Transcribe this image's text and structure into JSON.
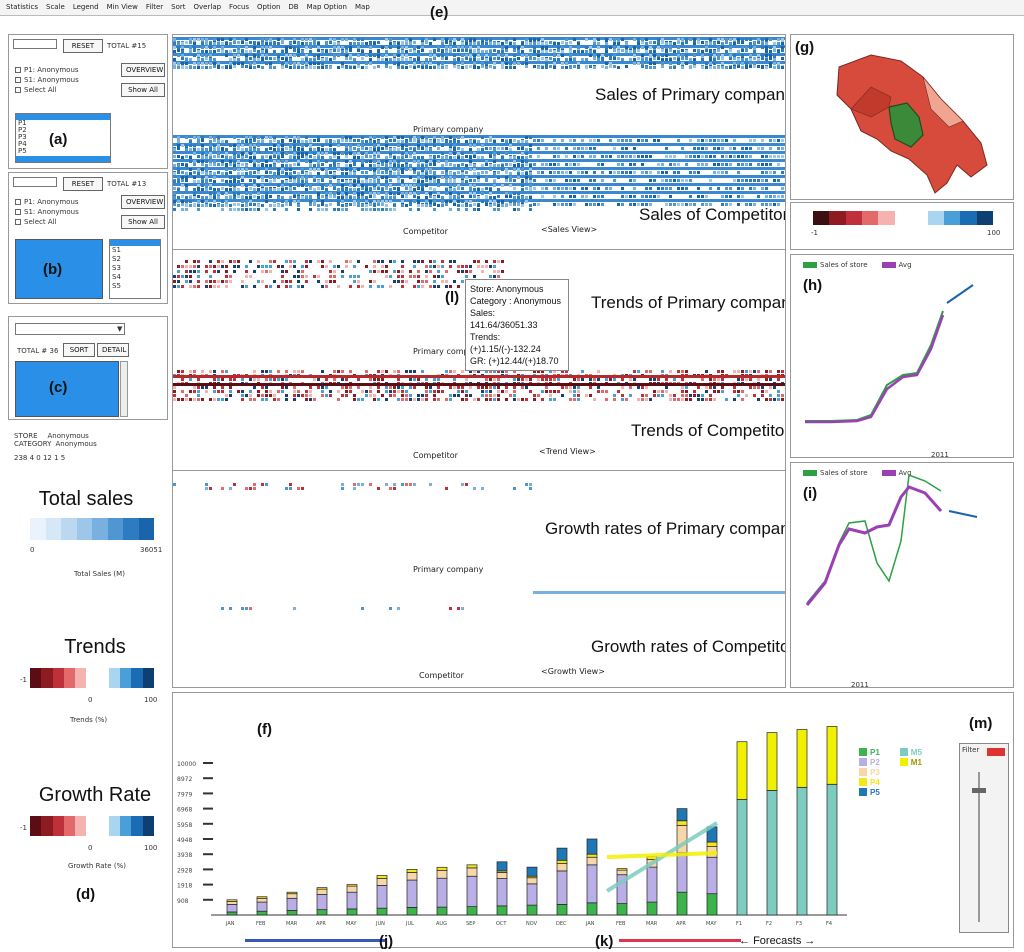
{
  "menu": [
    "Statistics",
    "Scale",
    "Legend",
    "Min View",
    "Filter",
    "Sort",
    "Overlap",
    "Focus",
    "Option",
    "DB",
    "Map Option",
    "Map"
  ],
  "labels": {
    "a": "(a)",
    "b": "(b)",
    "c": "(c)",
    "d": "(d)",
    "e": "(e)",
    "f": "(f)",
    "g": "(g)",
    "h": "(h)",
    "i": "(i)",
    "j": "(j)",
    "k": "(k)",
    "l": "(l)",
    "m": "(m)"
  },
  "panel_a": {
    "reset": "RESET",
    "total": "TOTAL #15",
    "overview": "OVERVIEW",
    "show_all": "Show All",
    "checks": [
      "P1: Anonymous",
      "S1: Anonymous",
      "Select All"
    ],
    "items": [
      "P1",
      "P2",
      "P3",
      "P4",
      "P5"
    ]
  },
  "panel_b": {
    "reset": "RESET",
    "total": "TOTAL #13",
    "overview": "OVERVIEW",
    "show_all": "Show All",
    "checks": [
      "P1: Anonymous",
      "S1: Anonymous",
      "Select All"
    ],
    "items": [
      "S1",
      "S2",
      "S3",
      "S4",
      "S5"
    ]
  },
  "panel_c": {
    "total": "TOTAL # 36",
    "sort": "SORT",
    "detail": "DETAIL"
  },
  "store_info": {
    "store_label": "STORE",
    "store_value": "Anonymous",
    "category_label": "CATEGORY",
    "category_value": "Anonymous",
    "stats": "238  4    0  12     1   5"
  },
  "legends": {
    "total_sales": {
      "title": "Total sales",
      "min": "0",
      "max": "36051",
      "caption": "Total Sales (M)",
      "colors": [
        "#eaf3fb",
        "#d6e8f7",
        "#bcd8f1",
        "#9cc6ea",
        "#78b1e0",
        "#4f96d3",
        "#2d7cc2",
        "#1a64ab"
      ]
    },
    "trends": {
      "title": "Trends",
      "left": "-1",
      "mid": "0",
      "right": "100",
      "caption": "Trends (%)",
      "colors": [
        "#5a0d12",
        "#8e1a22",
        "#c0303a",
        "#e36a6a",
        "#f4b3ae",
        "#ffffff",
        "#ffffff",
        "#a9d4f2",
        "#4b9fd8",
        "#1a6db3",
        "#0d3f73"
      ]
    },
    "growth": {
      "title": "Growth Rate",
      "left": "-1",
      "mid": "0",
      "right": "100",
      "caption": "Growth Rate (%)",
      "colors": [
        "#5a0d12",
        "#8e1a22",
        "#c0303a",
        "#e36a6a",
        "#f4b3ae",
        "#ffffff",
        "#ffffff",
        "#a9d4f2",
        "#4b9fd8",
        "#1a6db3",
        "#0d3f73"
      ]
    }
  },
  "views": {
    "sales_primary": "Sales of Primary company",
    "sales_competitor": "Sales of Competitor",
    "trends_primary": "Trends of Primary company",
    "trends_competitor": "Trends of Competitor",
    "growth_primary": "Growth rates of Primary company",
    "growth_competitor": "Growth rates of Competitor",
    "sales_view": "<Sales View>",
    "trend_view": "<Trend View>",
    "growth_view": "<Growth View>",
    "primary_small": "Primary company",
    "competitor_small": "Competitor"
  },
  "tooltip": [
    "Store: Anonymous",
    "Category : Anonymous",
    "Sales: 141.64/36051.33",
    "Trends: (+)1.15/(-)-132.24",
    "GR: (+)12.44/(+)18.70"
  ],
  "map_scale": {
    "left": "-1",
    "right": "100",
    "colors": [
      "#3a1010",
      "#8e1a22",
      "#c0303a",
      "#e36a6a",
      "#f4b3ae",
      "#ffffff",
      "#ffffff",
      "#a9d4f2",
      "#4b9fd8",
      "#1a6db3",
      "#0d3f73"
    ]
  },
  "line_legend": {
    "a": "Sales of store",
    "b": "Avg"
  },
  "line_year": "2011",
  "forecasts": "Forecasts",
  "filter_title": "Filter",
  "bar_legend": [
    {
      "name": "P1",
      "color": "#3cb44b"
    },
    {
      "name": "P2",
      "color": "#b9aee6"
    },
    {
      "name": "P3",
      "color": "#f6d7a7"
    },
    {
      "name": "P4",
      "color": "#f5e51b"
    },
    {
      "name": "P5",
      "color": "#1f78b4"
    },
    {
      "name": "M5",
      "color": "#7ecbc0"
    },
    {
      "name": "M1",
      "color": "#f0f000"
    }
  ],
  "chart_data": {
    "type": "bar",
    "title": "",
    "ylabel": "",
    "xlabel": "",
    "ylim": [
      0,
      10000
    ],
    "yticks": [
      "10000",
      "8972",
      "7979",
      "6968",
      "5958",
      "4948",
      "3938",
      "2928",
      "1918",
      "908"
    ],
    "categories": [
      "JAN",
      "FEB",
      "MAR",
      "APR",
      "MAY",
      "JUN",
      "JUL",
      "AUG",
      "SEP",
      "OCT",
      "NOV",
      "DEC",
      "JAN",
      "FEB",
      "MAR",
      "APR",
      "MAY",
      "F1",
      "F2",
      "F3",
      "F4"
    ],
    "series": [
      {
        "name": "P1",
        "values": [
          200,
          250,
          300,
          350,
          400,
          450,
          500,
          520,
          550,
          600,
          650,
          700,
          800,
          750,
          850,
          1500,
          1400,
          0,
          0,
          0,
          0
        ]
      },
      {
        "name": "P2",
        "values": [
          500,
          600,
          800,
          1000,
          1100,
          1500,
          1800,
          1900,
          2000,
          1800,
          1400,
          2200,
          2500,
          1900,
          2300,
          2600,
          2400,
          0,
          0,
          0,
          0
        ]
      },
      {
        "name": "P3",
        "values": [
          200,
          250,
          300,
          350,
          400,
          450,
          500,
          520,
          550,
          400,
          400,
          500,
          500,
          300,
          500,
          1800,
          700,
          0,
          0,
          0,
          0
        ]
      },
      {
        "name": "P4",
        "values": [
          100,
          100,
          100,
          100,
          100,
          200,
          200,
          200,
          200,
          100,
          100,
          200,
          200,
          100,
          200,
          300,
          300,
          0,
          0,
          0,
          0
        ]
      },
      {
        "name": "P5",
        "values": [
          0,
          0,
          0,
          0,
          0,
          0,
          0,
          0,
          0,
          600,
          600,
          800,
          1000,
          0,
          0,
          800,
          1000,
          0,
          0,
          0,
          0
        ]
      },
      {
        "name": "M5",
        "values": [
          0,
          0,
          0,
          0,
          0,
          0,
          0,
          0,
          0,
          0,
          0,
          0,
          0,
          0,
          0,
          0,
          0,
          7600,
          8200,
          8400,
          8600
        ]
      },
      {
        "name": "M1",
        "values": [
          0,
          0,
          0,
          0,
          0,
          0,
          0,
          0,
          0,
          0,
          0,
          0,
          0,
          0,
          0,
          0,
          0,
          3800,
          3800,
          3800,
          3800
        ]
      }
    ],
    "legend": "top-right",
    "grid": false
  }
}
